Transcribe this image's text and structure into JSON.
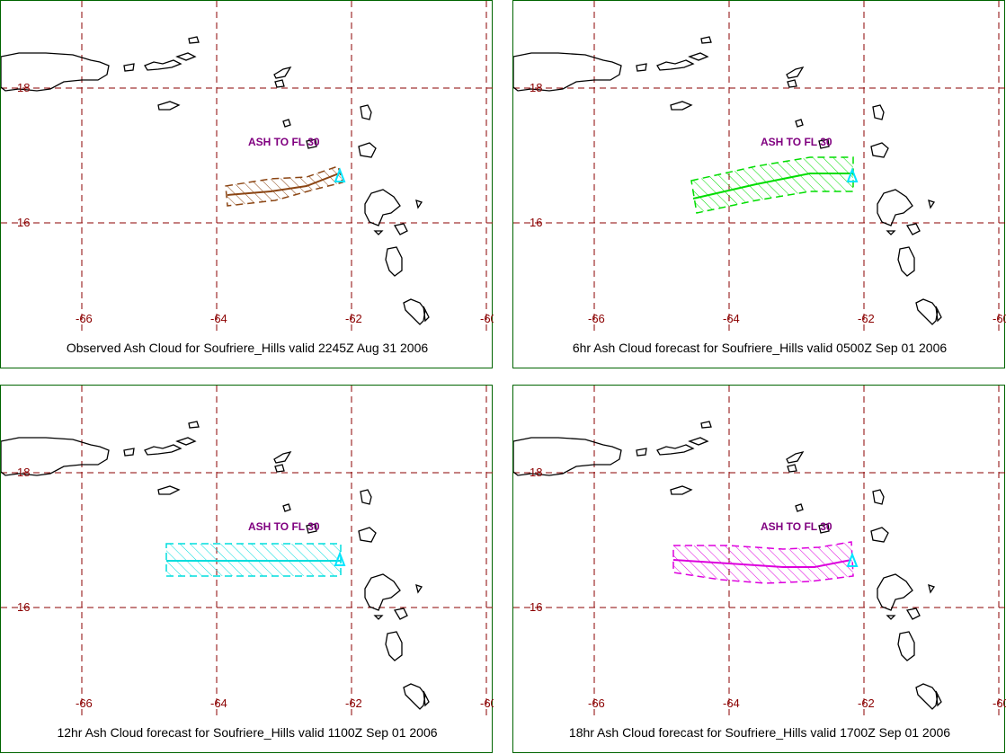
{
  "map": {
    "lat_ticks": [
      "18",
      "16"
    ],
    "lon_ticks": [
      "-66",
      "-64",
      "-62",
      "-60"
    ],
    "grid_color": "#8b0000",
    "coast_color": "#000000",
    "ash_label": "ASH TO FL 30",
    "ash_label_color": "#800080",
    "volcano_marker_color": "#00e5ff"
  },
  "panels": [
    {
      "caption": "Observed Ash Cloud for Soufriere_Hills valid 2245Z Aug 31 2006",
      "color": "#8b4513"
    },
    {
      "caption": "6hr Ash Cloud forecast for Soufriere_Hills valid 0500Z Sep 01 2006",
      "color": "#00dd00"
    },
    {
      "caption": "12hr Ash Cloud forecast for Soufriere_Hills valid 1100Z Sep 01 2006",
      "color": "#00dddd"
    },
    {
      "caption": "18hr Ash Cloud forecast for Soufriere_Hills valid 1700Z Sep 01 2006",
      "color": "#dd00dd"
    }
  ]
}
